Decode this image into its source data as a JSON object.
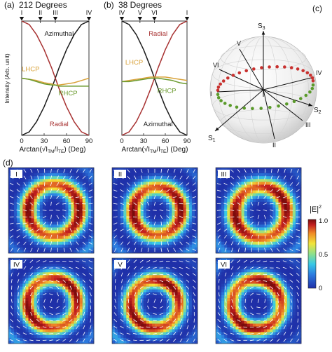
{
  "panel_labels": {
    "a": "(a)",
    "b": "(b)",
    "c": "(c)",
    "d": "(d)"
  },
  "colors": {
    "azimuthal": "#1c1c1c",
    "radial": "#a83232",
    "lhcp": "#d9a23a",
    "rhcp": "#6a9a2e",
    "sphere_upper": "#c8302e",
    "sphere_lower": "#5a9a2a"
  },
  "chart_data": [
    {
      "type": "line",
      "title": "212 Degrees",
      "xlabel_prefix": "Arctan(",
      "xlabel_suffix": ") (Deg)",
      "xlabel_ratio_num": "I",
      "xlabel_ratio_num_sub": "TM",
      "xlabel_ratio_den": "I",
      "xlabel_ratio_den_sub": "TE",
      "ylabel": "Intensity (Arb. unit)",
      "xlim": [
        0,
        90
      ],
      "ylim": [
        0,
        1
      ],
      "xticks": [
        "0",
        "30",
        "60",
        "90"
      ],
      "markers": [
        {
          "label": "I",
          "x": 0
        },
        {
          "label": "II",
          "x": 25
        },
        {
          "label": "III",
          "x": 45
        },
        {
          "label": "IV",
          "x": 90
        }
      ],
      "x": [
        0,
        10,
        20,
        30,
        40,
        45,
        50,
        60,
        70,
        80,
        90
      ],
      "series": [
        {
          "name": "Azimuthal",
          "values": [
            0.0,
            0.03,
            0.12,
            0.25,
            0.41,
            0.5,
            0.59,
            0.75,
            0.88,
            0.97,
            1.0
          ]
        },
        {
          "name": "Radial",
          "values": [
            1.0,
            0.97,
            0.88,
            0.75,
            0.59,
            0.5,
            0.41,
            0.25,
            0.12,
            0.03,
            0.0
          ]
        },
        {
          "name": "LHCP",
          "values": [
            0.5,
            0.49,
            0.48,
            0.46,
            0.45,
            0.44,
            0.44,
            0.45,
            0.46,
            0.48,
            0.5
          ]
        },
        {
          "name": "RHCP",
          "values": [
            0.5,
            0.49,
            0.47,
            0.45,
            0.44,
            0.44,
            0.43,
            0.43,
            0.43,
            0.43,
            0.43
          ]
        }
      ],
      "series_labels": [
        {
          "name": "Azimuthal",
          "x": 50,
          "y": 0.87
        },
        {
          "name": "LHCP",
          "x": 12,
          "y": 0.56
        },
        {
          "name": "RHCP",
          "x": 62,
          "y": 0.35
        },
        {
          "name": "Radial",
          "x": 50,
          "y": 0.08
        }
      ]
    },
    {
      "type": "line",
      "title": "38 Degrees",
      "xlabel_prefix": "Arctan(",
      "xlabel_suffix": ") (Deg)",
      "xlabel_ratio_num": "I",
      "xlabel_ratio_num_sub": "TM",
      "xlabel_ratio_den": "I",
      "xlabel_ratio_den_sub": "TE",
      "ylabel": "",
      "xlim": [
        0,
        90
      ],
      "ylim": [
        0,
        1
      ],
      "xticks": [
        "0",
        "30",
        "60",
        "90"
      ],
      "markers": [
        {
          "label": "IV",
          "x": 0
        },
        {
          "label": "V",
          "x": 25
        },
        {
          "label": "VI",
          "x": 45
        },
        {
          "label": "I",
          "x": 90
        }
      ],
      "x": [
        0,
        10,
        20,
        30,
        40,
        45,
        50,
        60,
        70,
        80,
        90
      ],
      "series": [
        {
          "name": "Radial",
          "values": [
            0.0,
            0.03,
            0.12,
            0.25,
            0.41,
            0.5,
            0.59,
            0.75,
            0.88,
            0.97,
            1.0
          ]
        },
        {
          "name": "Azimuthal",
          "values": [
            1.0,
            0.97,
            0.88,
            0.75,
            0.59,
            0.5,
            0.41,
            0.25,
            0.12,
            0.03,
            0.0
          ]
        },
        {
          "name": "LHCP",
          "values": [
            0.47,
            0.48,
            0.49,
            0.5,
            0.51,
            0.51,
            0.51,
            0.51,
            0.5,
            0.49,
            0.48
          ]
        },
        {
          "name": "RHCP",
          "values": [
            0.47,
            0.47,
            0.48,
            0.49,
            0.5,
            0.5,
            0.5,
            0.49,
            0.48,
            0.46,
            0.45
          ]
        }
      ],
      "series_labels": [
        {
          "name": "Radial",
          "x": 50,
          "y": 0.87
        },
        {
          "name": "LHCP",
          "x": 17,
          "y": 0.62
        },
        {
          "name": "RHCP",
          "x": 62,
          "y": 0.37
        },
        {
          "name": "Azimuthal",
          "x": 50,
          "y": 0.08
        }
      ]
    },
    {
      "type": "heatmap",
      "colorbar": {
        "label_base": "|E|",
        "label_exp": "2",
        "min": 0,
        "max": 1,
        "ticks": [
          "0",
          "0.5",
          "1.0"
        ]
      },
      "colormap": [
        "#1f2fa8",
        "#2c7ce0",
        "#37c8e6",
        "#8ee08a",
        "#f2e43a",
        "#f08a26",
        "#c42020",
        "#7a0c0c"
      ],
      "maps": [
        {
          "label": "I",
          "pattern": "radial",
          "ring_radius": 0.3,
          "ring_width": 0.17,
          "asym": 0.1,
          "rot": 0
        },
        {
          "label": "II",
          "pattern": "radial",
          "ring_radius": 0.28,
          "ring_width": 0.17,
          "asym": 0.1,
          "rot": 20
        },
        {
          "label": "III",
          "pattern": "radial",
          "ring_radius": 0.3,
          "ring_width": 0.18,
          "asym": 0.12,
          "rot": 40
        },
        {
          "label": "IV",
          "pattern": "azimuthal",
          "ring_radius": 0.29,
          "ring_width": 0.16,
          "asym": 0.1,
          "rot": 60
        },
        {
          "label": "V",
          "pattern": "azimuthal",
          "ring_radius": 0.28,
          "ring_width": 0.16,
          "asym": 0.14,
          "rot": 90
        },
        {
          "label": "VI",
          "pattern": "azimuthal",
          "ring_radius": 0.29,
          "ring_width": 0.16,
          "asym": 0.16,
          "rot": 120
        }
      ]
    }
  ],
  "poincare": {
    "axes": {
      "s1": "S",
      "s1_sub": "1",
      "s2": "S",
      "s2_sub": "2",
      "s3": "S",
      "s3_sub": "3"
    },
    "points": [
      "I",
      "II",
      "III",
      "IV",
      "V",
      "VI"
    ],
    "upper_dot_count": 20,
    "lower_dot_count": 18
  }
}
